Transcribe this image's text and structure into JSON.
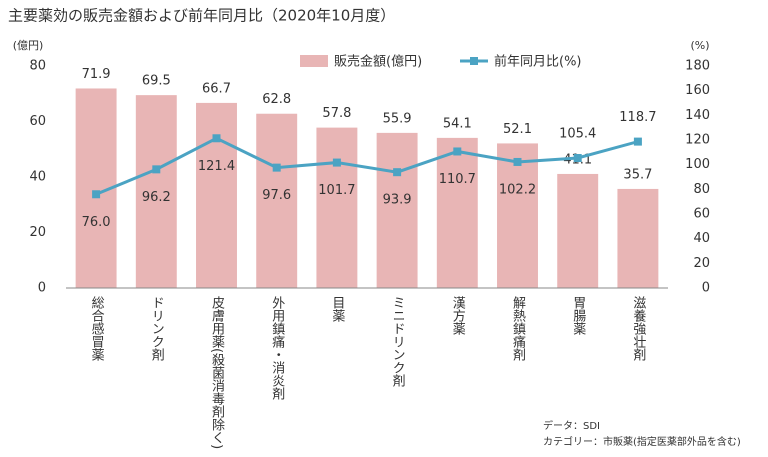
{
  "chart_data": {
    "type": "bar",
    "title": "主要薬効の販売金額および前年同月比（2020年10月度）",
    "y_label": "(億円)",
    "y2_label": "(%)",
    "categories": [
      "総合感冒薬",
      "ドリンク剤",
      "皮膚用薬(殺菌消毒剤除く)",
      "外用鎮痛・消炎剤",
      "目薬",
      "ミニドリンク剤",
      "漢方薬",
      "解熱鎮痛剤",
      "胃腸薬",
      "滋養強壮剤"
    ],
    "series": [
      {
        "name": "販売金額(億円)",
        "type": "bar",
        "color": "#e8b5b5",
        "values": [
          71.9,
          69.5,
          66.7,
          62.8,
          57.8,
          55.9,
          54.1,
          52.1,
          41.1,
          35.7
        ]
      },
      {
        "name": "前年同月比(%)",
        "type": "line",
        "axis": "y2",
        "color": "#4ba3c3",
        "values": [
          76.0,
          96.2,
          121.4,
          97.6,
          101.7,
          93.9,
          110.7,
          102.2,
          105.4,
          118.7
        ],
        "value_labels": [
          "76.0",
          "96.2",
          "121.4",
          "97.6",
          "101.7",
          "93.9",
          "110.7",
          "102.2",
          "105.4",
          "118.7"
        ]
      }
    ],
    "ylim": [
      0,
      80
    ],
    "yticks": [
      0,
      20,
      40,
      60,
      80
    ],
    "y2lim": [
      0,
      180
    ],
    "y2ticks": [
      0,
      20,
      40,
      60,
      80,
      100,
      120,
      140,
      160,
      180
    ],
    "grid": false,
    "notes": [
      "データ：SDI",
      "カテゴリー：市販薬(指定医薬部外品を含む)"
    ]
  }
}
